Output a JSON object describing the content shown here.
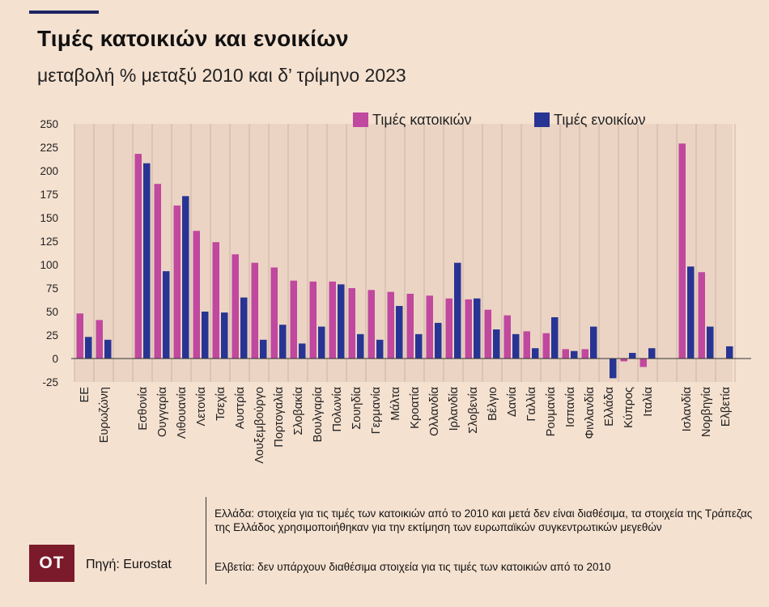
{
  "header": {
    "title": "Τιμές κατοικιών και ενοικίων",
    "subtitle": "μεταβολή % μεταξύ 2010 και δ’ τρίμηνο 2023"
  },
  "chart_data": {
    "type": "bar",
    "categories": [
      "ΕΕ",
      "Ευρωζώνη",
      "Εσθονία",
      "Ουγγαρία",
      "Λιθουανία",
      "Λετονία",
      "Τσεχία",
      "Αυστρία",
      "Λουξεμβούργο",
      "Πορτογαλία",
      "Σλοβακία",
      "Βουλγαρία",
      "Πολωνία",
      "Σουηδία",
      "Γερμανία",
      "Μάλτα",
      "Κροατία",
      "Ολλανδία",
      "Ιρλανδία",
      "Σλοβενία",
      "Βέλγιο",
      "Δανία",
      "Γαλλία",
      "Ρουμανία",
      "Ισπανία",
      "Φινλανδία",
      "Ελλάδα",
      "Κύπρος",
      "Ιταλία",
      "Ισλανδία",
      "Νορβηγία",
      "Ελβετία"
    ],
    "groups": [
      [
        "ΕΕ",
        "Ευρωζώνη"
      ],
      [
        "Εσθονία",
        "Ουγγαρία",
        "Λιθουανία",
        "Λετονία",
        "Τσεχία",
        "Αυστρία",
        "Λουξεμβούργο",
        "Πορτογαλία",
        "Σλοβακία",
        "Βουλγαρία",
        "Πολωνία",
        "Σουηδία",
        "Γερμανία",
        "Μάλτα",
        "Κροατία",
        "Ολλανδία",
        "Ιρλανδία",
        "Σλοβενία",
        "Βέλγιο",
        "Δανία",
        "Γαλλία",
        "Ρουμανία",
        "Ισπανία",
        "Φινλανδία",
        "Ελλάδα",
        "Κύπρος",
        "Ιταλία"
      ],
      [
        "Ισλανδία",
        "Νορβηγία",
        "Ελβετία"
      ]
    ],
    "series": [
      {
        "name": "Τιμές κατοικιών",
        "color": "#c0489e",
        "values": [
          48,
          41,
          218,
          186,
          163,
          136,
          124,
          111,
          102,
          97,
          83,
          82,
          82,
          75,
          73,
          71,
          69,
          67,
          64,
          63,
          52,
          46,
          29,
          27,
          10,
          10,
          null,
          -3,
          -9,
          229,
          92,
          null
        ]
      },
      {
        "name": "Τιμές ενοικίων",
        "color": "#283494",
        "values": [
          23,
          20,
          208,
          93,
          173,
          50,
          49,
          65,
          20,
          36,
          16,
          34,
          79,
          26,
          20,
          56,
          26,
          38,
          102,
          64,
          31,
          26,
          11,
          44,
          8,
          34,
          -21,
          6,
          11,
          98,
          34,
          13
        ]
      }
    ],
    "ylim": [
      -25,
      250
    ],
    "yticks": [
      -25,
      0,
      25,
      50,
      75,
      100,
      125,
      150,
      175,
      200,
      225,
      250
    ],
    "legend_position": "top-right",
    "grid": "vertical-dividers"
  },
  "footer": {
    "logo": "ΟΤ",
    "source": "Πηγή: Eurostat",
    "note_greece": "Ελλάδα: στοιχεία για τις τιμές των κατοικιών από το 2010 και μετά δεν είναι διαθέσιμα, τα στοιχεία της Τράπεζας της Ελλάδος χρησιμοποιήθηκαν για την εκτίμηση των ευρωπαϊκών συγκεντρωτικών μεγεθών",
    "note_switzerland": "Ελβετία: δεν υπάρχουν διαθέσιμα στοιχεία για τις τιμές των κατοικιών από το 2010"
  }
}
